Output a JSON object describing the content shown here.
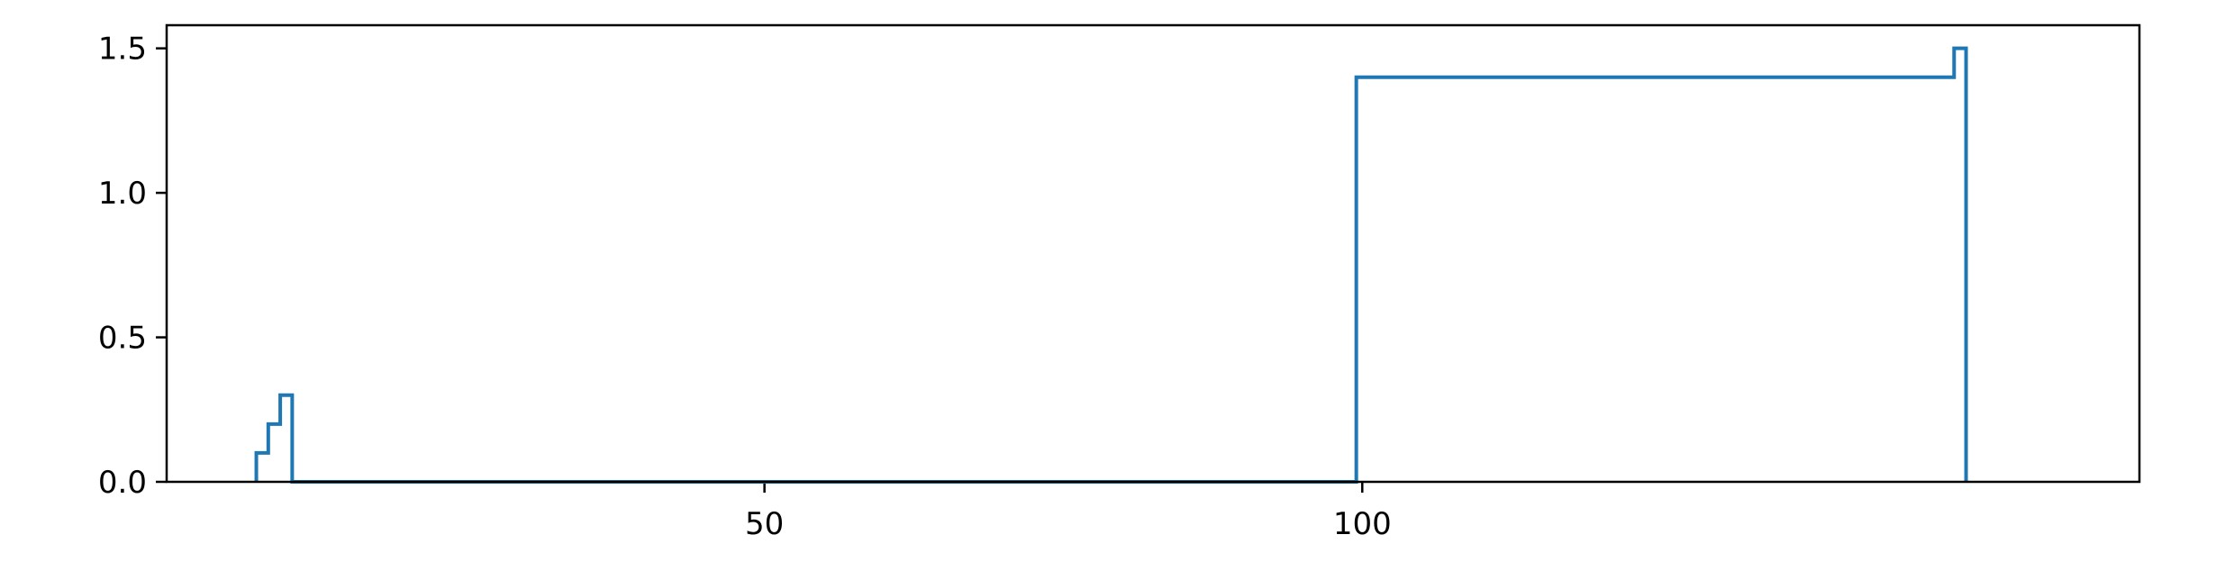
{
  "chart_data": {
    "type": "line",
    "drawstyle": "steps",
    "title": "",
    "xlabel": "",
    "ylabel": "",
    "xlim": [
      0,
      165
    ],
    "ylim": [
      0,
      1.58
    ],
    "x_ticks": [
      50,
      100
    ],
    "x_tick_labels": [
      "50",
      "100"
    ],
    "y_ticks": [
      0,
      0.5,
      1.0,
      1.5
    ],
    "y_tick_labels": [
      "0.0",
      "0.5",
      "1.0",
      "1.5"
    ],
    "grid": false,
    "legend": "none",
    "series": [
      {
        "color": "#1f77b4",
        "points": [
          [
            7.5,
            0
          ],
          [
            7.5,
            0.1
          ],
          [
            8.5,
            0.1
          ],
          [
            8.5,
            0.2
          ],
          [
            9.5,
            0.2
          ],
          [
            9.5,
            0.3
          ],
          [
            10.5,
            0.3
          ],
          [
            10.5,
            0
          ],
          [
            99.5,
            0
          ],
          [
            99.5,
            1.4
          ],
          [
            149.5,
            1.4
          ],
          [
            149.5,
            1.5
          ],
          [
            150.5,
            1.5
          ],
          [
            150.5,
            0
          ]
        ]
      }
    ]
  }
}
